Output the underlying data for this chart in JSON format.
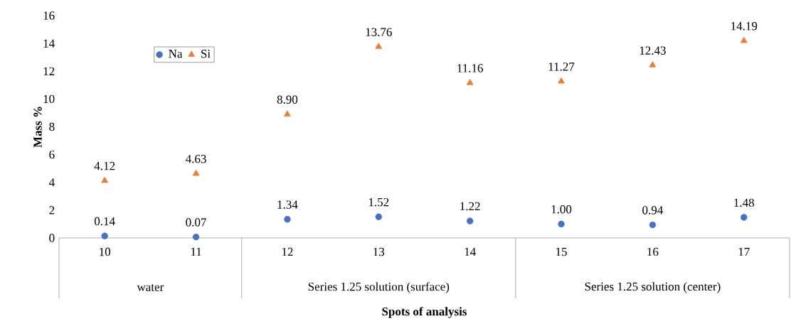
{
  "chart_data": {
    "type": "scatter",
    "xlabel": "Spots of analysis",
    "ylabel": "Mass %",
    "categories": [
      "10",
      "11",
      "12",
      "13",
      "14",
      "15",
      "16",
      "17"
    ],
    "series": [
      {
        "name": "Na",
        "color": "#4472c4",
        "marker": "circle",
        "values": [
          0.14,
          0.07,
          1.34,
          1.52,
          1.22,
          1.0,
          0.94,
          1.48
        ],
        "value_labels": [
          "0.14",
          "0.07",
          "1.34",
          "1.52",
          "1.22",
          "1.00",
          "0.94",
          "1.48"
        ]
      },
      {
        "name": "Si",
        "color": "#ed7d31",
        "marker": "triangle",
        "values": [
          4.12,
          4.63,
          8.9,
          13.76,
          11.16,
          11.27,
          12.43,
          14.19
        ],
        "value_labels": [
          "4.12",
          "4.63",
          "8.90",
          "13.76",
          "11.16",
          "11.27",
          "12.43",
          "14.19"
        ]
      }
    ],
    "ylim": [
      0,
      16
    ],
    "yticks": [
      0,
      2,
      4,
      6,
      8,
      10,
      12,
      14,
      16
    ],
    "legend": "top left",
    "annotations": [
      "water",
      "Series 1.25 solution (surface)",
      "Series 1.25 solution (center)"
    ]
  }
}
